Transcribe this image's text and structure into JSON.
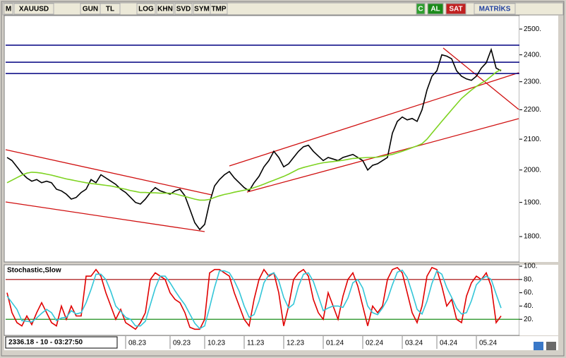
{
  "toolbar": {
    "items": [
      "M",
      "XAUUSD",
      "GUN",
      "TL",
      "LOG",
      "KHN",
      "SVD",
      "SYM",
      "TMP",
      "C",
      "AL",
      "SAT",
      "MATRİKS"
    ]
  },
  "status": "2336.18 - 10 - 03:27:50",
  "chart_data": [
    {
      "type": "line",
      "log": true,
      "ylim": [
        1731,
        2554
      ],
      "yticks": [
        {
          "value": 1800,
          "label": "1800."
        },
        {
          "value": 1900,
          "label": "1900."
        },
        {
          "value": 2000,
          "label": "2000."
        },
        {
          "value": 2100,
          "label": "2100."
        },
        {
          "value": 2200,
          "label": "2200."
        },
        {
          "value": 2300,
          "label": "2300."
        },
        {
          "value": 2400,
          "label": "2400."
        },
        {
          "value": 2500,
          "label": "2500."
        }
      ],
      "hlines": [
        2437,
        2372,
        2330
      ],
      "hline_color": "#000080",
      "series": [
        {
          "color": "#000000",
          "values": [
            2040,
            2030,
            2010,
            1990,
            1975,
            1965,
            1970,
            1960,
            1965,
            1960,
            1940,
            1935,
            1925,
            1910,
            1915,
            1930,
            1940,
            1970,
            1960,
            1985,
            1975,
            1965,
            1955,
            1940,
            1930,
            1915,
            1900,
            1895,
            1910,
            1930,
            1945,
            1935,
            1930,
            1925,
            1935,
            1940,
            1920,
            1880,
            1840,
            1820,
            1835,
            1900,
            1950,
            1970,
            1985,
            1995,
            1975,
            1960,
            1945,
            1935,
            1960,
            1980,
            2010,
            2030,
            2060,
            2040,
            2010,
            2020,
            2040,
            2060,
            2075,
            2080,
            2060,
            2045,
            2030,
            2040,
            2035,
            2030,
            2040,
            2045,
            2050,
            2040,
            2030,
            2000,
            2015,
            2020,
            2030,
            2040,
            2120,
            2160,
            2175,
            2165,
            2170,
            2160,
            2200,
            2270,
            2320,
            2340,
            2400,
            2395,
            2385,
            2340,
            2320,
            2310,
            2305,
            2320,
            2350,
            2370,
            2420,
            2350,
            2340
          ]
        },
        {
          "color": "#7ed321",
          "values": [
            1960,
            1968,
            1976,
            1984,
            1990,
            1993,
            1992,
            1990,
            1987,
            1984,
            1980,
            1976,
            1972,
            1969,
            1966,
            1963,
            1960,
            1958,
            1956,
            1954,
            1952,
            1950,
            1947,
            1943,
            1940,
            1936,
            1933,
            1930,
            1930,
            1929,
            1929,
            1928,
            1928,
            1928,
            1926,
            1922,
            1918,
            1914,
            1910,
            1907,
            1907,
            1909,
            1915,
            1920,
            1924,
            1927,
            1931,
            1934,
            1937,
            1940,
            1945,
            1950,
            1956,
            1962,
            1968,
            1974,
            1980,
            1987,
            1995,
            2003,
            2008,
            2012,
            2016,
            2020,
            2023,
            2025,
            2027,
            2029,
            2031,
            2034,
            2037,
            2038,
            2039,
            2040,
            2040,
            2041,
            2044,
            2047,
            2050,
            2055,
            2060,
            2066,
            2072,
            2078,
            2085,
            2100,
            2120,
            2140,
            2160,
            2180,
            2200,
            2220,
            2240,
            2255,
            2270,
            2283,
            2295,
            2305,
            2320,
            2335,
            2345
          ]
        }
      ]
    },
    {
      "type": "line",
      "title": "Stochastic,Slow",
      "ylim": [
        0,
        100
      ],
      "yticks": [
        {
          "value": 20,
          "label": "20."
        },
        {
          "value": 40,
          "label": "40."
        },
        {
          "value": 60,
          "label": "60."
        },
        {
          "value": 80,
          "label": "80."
        },
        {
          "value": 100,
          "label": "100."
        }
      ],
      "levels": [
        {
          "value": 80,
          "color": "#a00000"
        },
        {
          "value": 20,
          "color": "#008000"
        }
      ],
      "categories": [
        null,
        null,
        null,
        null,
        null,
        null,
        null,
        null,
        null,
        null,
        null,
        null,
        null,
        null,
        null,
        null,
        null,
        null,
        null,
        null,
        null,
        null,
        null,
        null,
        "08.23",
        null,
        null,
        null,
        null,
        null,
        null,
        null,
        null,
        "09.23",
        null,
        null,
        null,
        null,
        null,
        null,
        "10.23",
        null,
        null,
        null,
        null,
        null,
        null,
        null,
        "11.23",
        null,
        null,
        null,
        null,
        null,
        null,
        null,
        "12.23",
        null,
        null,
        null,
        null,
        null,
        null,
        null,
        "01.24",
        null,
        null,
        null,
        null,
        null,
        null,
        null,
        "02.24",
        null,
        null,
        null,
        null,
        null,
        null,
        null,
        "03.24",
        null,
        null,
        null,
        null,
        null,
        null,
        "04.24",
        null,
        null,
        null,
        null,
        null,
        null,
        null,
        "05.24",
        null,
        null,
        null,
        null,
        null
      ],
      "series": [
        {
          "color": "#e00000",
          "values": [
            60,
            30,
            15,
            10,
            25,
            12,
            30,
            45,
            30,
            15,
            10,
            40,
            20,
            40,
            25,
            25,
            85,
            85,
            95,
            85,
            60,
            40,
            20,
            35,
            15,
            10,
            5,
            15,
            30,
            80,
            90,
            85,
            80,
            60,
            50,
            45,
            30,
            8,
            5,
            5,
            20,
            90,
            95,
            95,
            90,
            85,
            60,
            40,
            20,
            10,
            50,
            80,
            95,
            85,
            90,
            60,
            10,
            40,
            80,
            90,
            95,
            85,
            50,
            30,
            20,
            60,
            40,
            20,
            55,
            80,
            90,
            70,
            40,
            10,
            40,
            30,
            40,
            80,
            95,
            98,
            90,
            60,
            30,
            15,
            40,
            85,
            98,
            95,
            70,
            40,
            50,
            20,
            15,
            55,
            75,
            85,
            80,
            90,
            70,
            15,
            25
          ]
        },
        {
          "color": "#33c6d8",
          "values": [
            55,
            45,
            35,
            18,
            17,
            16,
            22,
            29,
            35,
            30,
            18,
            22,
            23,
            33,
            28,
            30,
            45,
            65,
            88,
            88,
            80,
            62,
            40,
            32,
            23,
            20,
            10,
            10,
            17,
            42,
            67,
            85,
            85,
            75,
            63,
            52,
            42,
            28,
            14,
            6,
            10,
            38,
            68,
            93,
            93,
            90,
            78,
            62,
            40,
            23,
            27,
            47,
            75,
            87,
            90,
            78,
            53,
            37,
            43,
            70,
            88,
            90,
            77,
            55,
            33,
            37,
            40,
            40,
            38,
            52,
            75,
            80,
            67,
            40,
            30,
            27,
            37,
            50,
            72,
            91,
            94,
            83,
            60,
            35,
            28,
            47,
            74,
            93,
            88,
            68,
            53,
            37,
            28,
            30,
            48,
            72,
            80,
            85,
            80,
            58,
            37
          ]
        }
      ]
    }
  ]
}
